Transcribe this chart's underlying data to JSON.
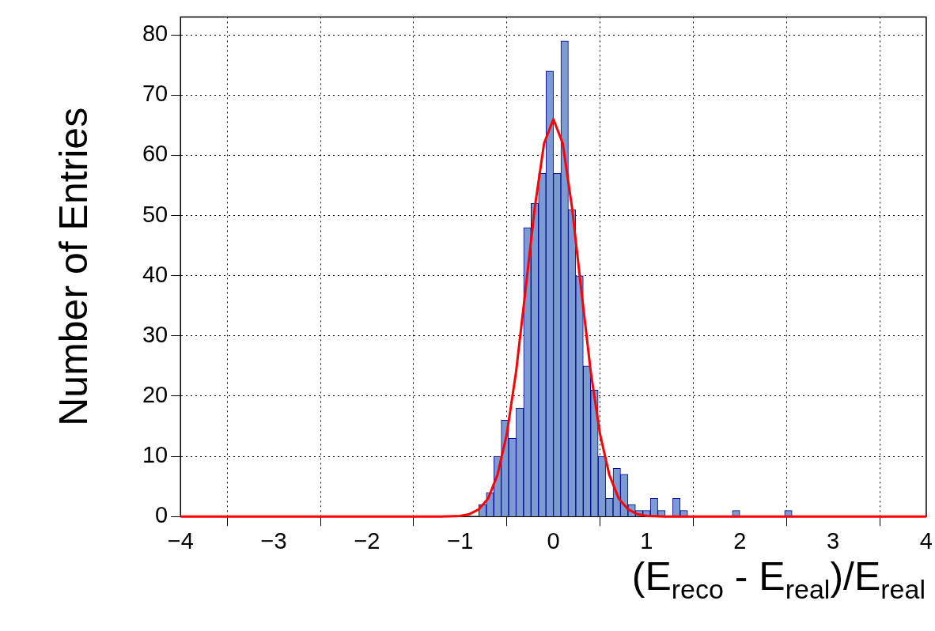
{
  "chart_data": {
    "type": "histogram",
    "xlabel": "(E$_{reco}$ - E$_{real}$)/E$_{real}$",
    "ylabel": "Number of Entries",
    "xlim": [
      -4,
      4
    ],
    "xticks": [
      -4,
      -3,
      -2,
      -1,
      0,
      1,
      2,
      3,
      4
    ],
    "ylim": [
      0,
      83
    ],
    "yticks": [
      0,
      10,
      20,
      30,
      40,
      50,
      60,
      70,
      80
    ],
    "grid": true,
    "series": [
      {
        "type": "histogram",
        "color": "#7b9bd1",
        "bins": [
          -4,
          -3.92,
          -3.84,
          -3.76,
          -3.68,
          -3.6,
          -3.52,
          -3.44,
          -3.36,
          -3.28,
          -3.2,
          -3.12,
          -3.04,
          -2.96,
          -2.88,
          -2.8,
          -2.72,
          -2.64,
          -2.56,
          -2.48,
          -2.4,
          -2.32,
          -2.24,
          -2.16,
          -2.08,
          -2,
          -1.92,
          -1.84,
          -1.76,
          -1.68,
          -1.6,
          -1.52,
          -1.44,
          -1.36,
          -1.28,
          -1.2,
          -1.12,
          -1.04,
          -0.96,
          -0.88,
          -0.8,
          -0.72,
          -0.64,
          -0.56,
          -0.48,
          -0.4,
          -0.32,
          -0.24,
          -0.16,
          -0.08,
          0,
          0.08,
          0.16,
          0.24,
          0.32,
          0.4,
          0.48,
          0.56,
          0.64,
          0.72,
          0.8,
          0.88,
          0.96,
          1.04,
          1.12,
          1.2,
          1.28,
          1.36,
          1.44,
          1.52,
          1.6,
          1.68,
          1.76,
          1.84,
          1.92,
          2,
          2.08,
          2.16,
          2.24,
          2.32,
          2.4,
          2.48,
          2.56,
          2.64,
          2.72,
          2.8,
          2.88,
          2.96,
          3.04,
          3.12,
          3.2,
          3.28,
          3.36,
          3.44,
          3.52,
          3.6,
          3.68,
          3.76,
          3.84,
          3.92,
          4
        ],
        "values": [
          0,
          0,
          0,
          0,
          0,
          0,
          0,
          0,
          0,
          0,
          0,
          0,
          0,
          0,
          0,
          0,
          0,
          0,
          0,
          0,
          0,
          0,
          0,
          0,
          0,
          0,
          0,
          0,
          0,
          0,
          0,
          0,
          0,
          0,
          0,
          0,
          0,
          0,
          0,
          0,
          2,
          4,
          10,
          16,
          13,
          18,
          48,
          52,
          57,
          74,
          57,
          79,
          51,
          40,
          25,
          21,
          10,
          3,
          8,
          7,
          2,
          1,
          1,
          3,
          1,
          0,
          3,
          1,
          0,
          0,
          0,
          0,
          0,
          0,
          1,
          0,
          0,
          0,
          0,
          0,
          0,
          1,
          0,
          0,
          0,
          0,
          0,
          0,
          0,
          0,
          0,
          0,
          0,
          0,
          0,
          0,
          0,
          0,
          0,
          0
        ]
      },
      {
        "type": "line",
        "color": "#ff0000",
        "x": [
          -4,
          -1.2,
          -1,
          -0.9,
          -0.8,
          -0.7,
          -0.6,
          -0.5,
          -0.4,
          -0.3,
          -0.2,
          -0.1,
          0,
          0.1,
          0.2,
          0.3,
          0.4,
          0.5,
          0.6,
          0.7,
          0.8,
          0.9,
          1,
          1.2,
          4
        ],
        "values": [
          0,
          0,
          0.1,
          0.4,
          1.2,
          3,
          6.9,
          13.7,
          24.1,
          37.5,
          51.3,
          62,
          66,
          62,
          51.3,
          37.5,
          24.1,
          13.7,
          6.9,
          3,
          1.2,
          0.4,
          0.1,
          0,
          0
        ]
      }
    ]
  }
}
